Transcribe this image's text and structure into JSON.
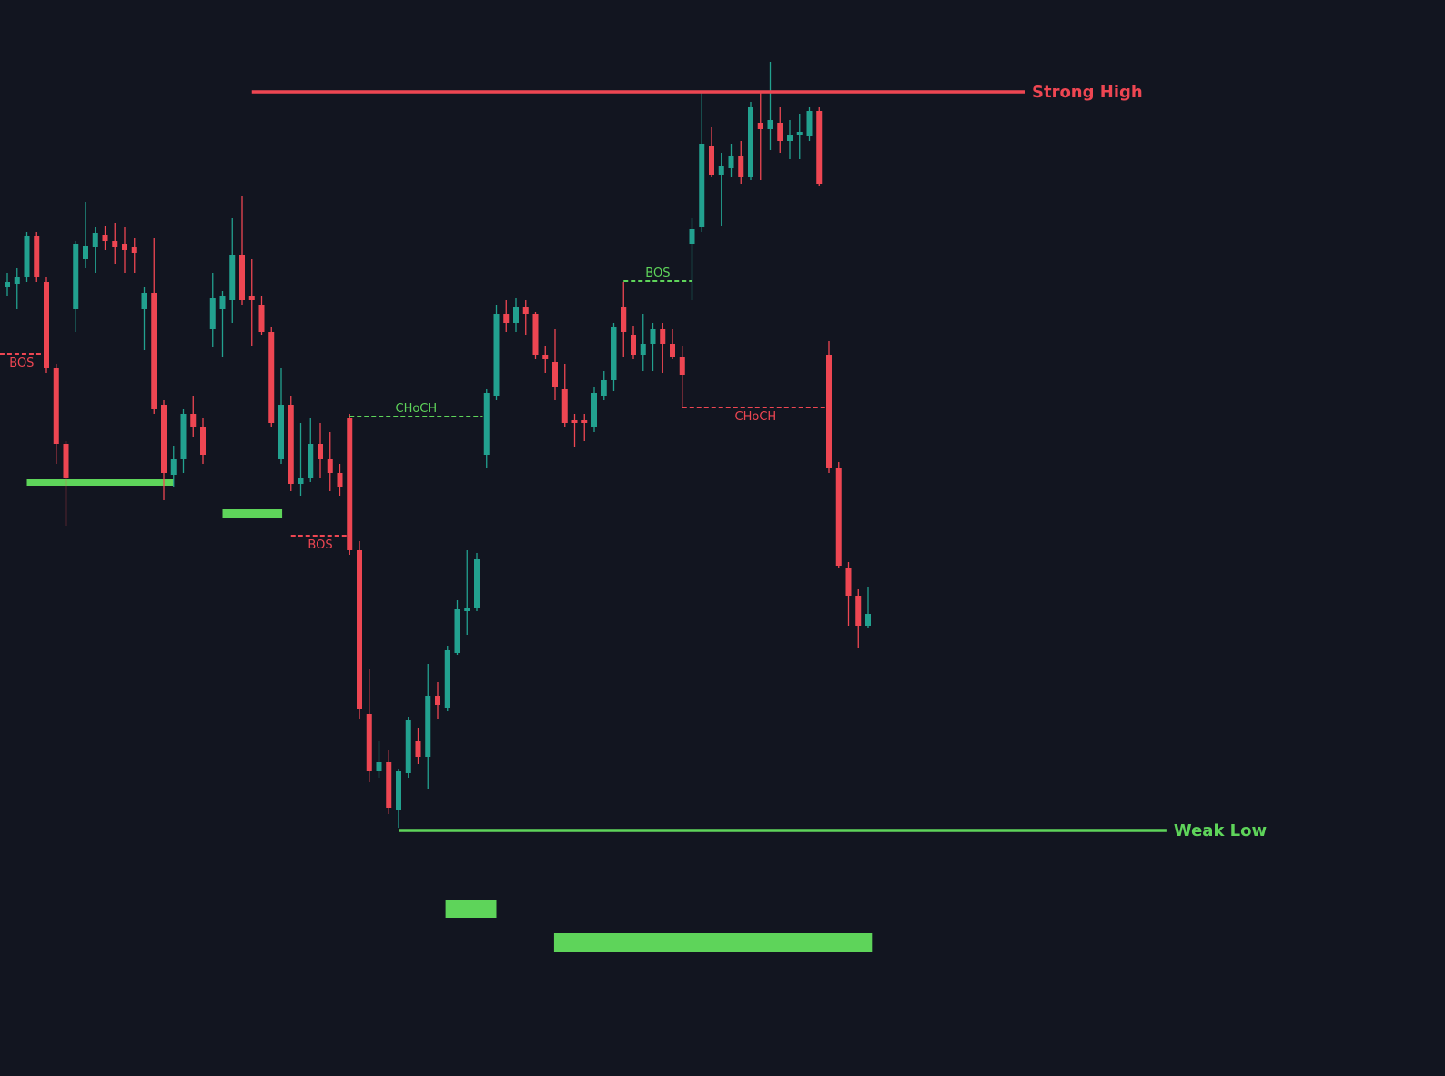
{
  "chart_data": {
    "type": "candlestick",
    "ylim": [
      0,
      1183
    ],
    "up_color": "#22a18f",
    "down_color": "#ee4652",
    "level_up_color": "#5ed45a",
    "level_down_color": "#ee4652",
    "open": [
      868,
      871,
      878,
      923,
      873,
      778,
      695,
      843,
      898,
      911,
      925,
      918,
      915,
      911,
      843,
      861,
      738,
      661,
      678,
      728,
      713,
      821,
      843,
      853,
      903,
      858,
      848,
      818,
      678,
      738,
      651,
      658,
      695,
      678,
      663,
      723,
      578,
      398,
      335,
      345,
      293,
      333,
      368,
      351,
      418,
      405,
      465,
      511,
      515,
      683,
      748,
      838,
      828,
      845,
      838,
      793,
      785,
      755,
      721,
      721,
      713,
      748,
      765,
      845,
      815,
      793,
      805,
      821,
      805,
      791,
      915,
      933,
      1023,
      991,
      998,
      1011,
      988,
      1048,
      1041,
      1048,
      1028,
      1035,
      1033,
      1061,
      793,
      668,
      558,
      528,
      495
    ],
    "high": [
      883,
      888,
      928,
      928,
      878,
      783,
      698,
      918,
      961,
      933,
      935,
      938,
      933,
      921,
      868,
      921,
      743,
      693,
      733,
      748,
      723,
      883,
      863,
      943,
      968,
      898,
      858,
      823,
      778,
      748,
      718,
      723,
      718,
      708,
      673,
      728,
      588,
      448,
      368,
      358,
      338,
      395,
      383,
      453,
      433,
      473,
      523,
      578,
      575,
      755,
      848,
      853,
      855,
      853,
      840,
      803,
      821,
      783,
      728,
      728,
      758,
      775,
      828,
      873,
      825,
      838,
      828,
      828,
      821,
      803,
      943,
      1081,
      1043,
      1015,
      1025,
      1028,
      1071,
      1081,
      1115,
      1065,
      1051,
      1058,
      1065,
      1065,
      808,
      675,
      565,
      535,
      538
    ],
    "low": [
      858,
      843,
      873,
      873,
      773,
      673,
      605,
      818,
      888,
      883,
      908,
      893,
      883,
      883,
      798,
      728,
      633,
      648,
      663,
      703,
      673,
      801,
      791,
      828,
      848,
      803,
      815,
      713,
      673,
      643,
      638,
      653,
      658,
      643,
      638,
      573,
      393,
      323,
      328,
      288,
      273,
      328,
      343,
      315,
      393,
      401,
      463,
      485,
      511,
      668,
      743,
      818,
      818,
      815,
      788,
      773,
      743,
      713,
      691,
      698,
      708,
      743,
      753,
      791,
      788,
      775,
      775,
      773,
      788,
      735,
      853,
      928,
      988,
      935,
      988,
      981,
      985,
      985,
      1018,
      1015,
      1008,
      1008,
      1028,
      978,
      663,
      558,
      495,
      471,
      493
    ],
    "close": [
      873,
      878,
      923,
      878,
      778,
      695,
      658,
      915,
      913,
      927,
      918,
      911,
      908,
      905,
      861,
      733,
      663,
      678,
      728,
      713,
      683,
      855,
      858,
      903,
      853,
      853,
      818,
      718,
      738,
      651,
      658,
      695,
      678,
      663,
      648,
      578,
      403,
      335,
      345,
      295,
      335,
      391,
      351,
      418,
      408,
      468,
      513,
      515,
      568,
      751,
      838,
      828,
      845,
      838,
      793,
      788,
      758,
      718,
      718,
      718,
      751,
      765,
      823,
      818,
      793,
      805,
      821,
      805,
      791,
      771,
      931,
      1025,
      991,
      1001,
      1011,
      988,
      1065,
      1041,
      1051,
      1028,
      1035,
      1038,
      1061,
      981,
      668,
      561,
      528,
      495,
      508
    ],
    "levels": [
      {
        "label": "Strong High",
        "value": 1082,
        "from": 25,
        "to": 104,
        "direction": "down"
      },
      {
        "label": "Weak Low",
        "value": 270,
        "from": 40,
        "to": 118.5,
        "direction": "up"
      }
    ],
    "structures": [
      {
        "label": "BOS",
        "value": 794,
        "from": -0.75,
        "to": 3.7,
        "direction": "down"
      },
      {
        "label": "CHoCH",
        "value": 725,
        "from": 35,
        "to": 48.6,
        "direction": "up"
      },
      {
        "label": "BOS",
        "value": 594,
        "from": 29,
        "to": 35,
        "direction": "down"
      },
      {
        "label": "BOS",
        "value": 874,
        "from": 63,
        "to": 70,
        "direction": "up"
      },
      {
        "label": "CHoCH",
        "value": 735,
        "from": 69,
        "to": 84,
        "direction": "down"
      }
    ],
    "zones": [
      {
        "top": 656,
        "bottom": 649,
        "from": 2,
        "to": 17
      },
      {
        "top": 623,
        "bottom": 613,
        "from": 22,
        "to": 28.1
      },
      {
        "top": 193,
        "bottom": 174,
        "from": 44.8,
        "to": 50
      },
      {
        "top": 157,
        "bottom": 136,
        "from": 55.9,
        "to": 88.4
      }
    ]
  }
}
